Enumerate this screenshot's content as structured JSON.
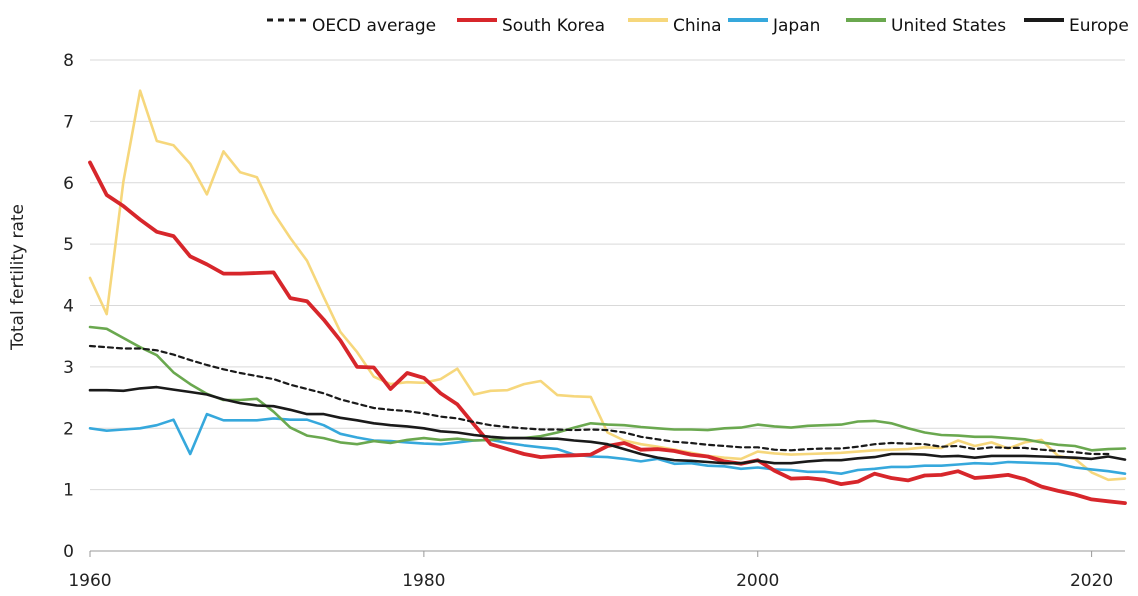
{
  "chart_data": {
    "type": "line",
    "title": "",
    "xlabel": "",
    "ylabel": "Total fertility rate",
    "xlim": [
      1960,
      2022
    ],
    "ylim": [
      0,
      8
    ],
    "x_ticks": [
      "1960",
      "1980",
      "2000",
      "2020"
    ],
    "y_ticks": [
      "0",
      "1",
      "2",
      "3",
      "4",
      "5",
      "6",
      "7",
      "8"
    ],
    "grid": true,
    "legend_position": "top",
    "x": [
      1960,
      1961,
      1962,
      1963,
      1964,
      1965,
      1966,
      1967,
      1968,
      1969,
      1970,
      1971,
      1972,
      1973,
      1974,
      1975,
      1976,
      1977,
      1978,
      1979,
      1980,
      1981,
      1982,
      1983,
      1984,
      1985,
      1986,
      1987,
      1988,
      1989,
      1990,
      1991,
      1992,
      1993,
      1994,
      1995,
      1996,
      1997,
      1998,
      1999,
      2000,
      2001,
      2002,
      2003,
      2004,
      2005,
      2006,
      2007,
      2008,
      2009,
      2010,
      2011,
      2012,
      2013,
      2014,
      2015,
      2016,
      2017,
      2018,
      2019,
      2020,
      2021,
      2022
    ],
    "series": [
      {
        "name": "OECD average",
        "color": "#1a1a1a",
        "dash": true,
        "values": [
          3.34,
          3.32,
          3.3,
          3.3,
          3.27,
          3.2,
          3.11,
          3.03,
          2.96,
          2.9,
          2.85,
          2.8,
          2.71,
          2.64,
          2.57,
          2.47,
          2.4,
          2.33,
          2.3,
          2.28,
          2.24,
          2.19,
          2.16,
          2.1,
          2.05,
          2.02,
          2.0,
          1.98,
          1.98,
          1.97,
          1.98,
          1.97,
          1.93,
          1.86,
          1.82,
          1.78,
          1.76,
          1.73,
          1.71,
          1.69,
          1.69,
          1.65,
          1.64,
          1.66,
          1.67,
          1.67,
          1.7,
          1.74,
          1.76,
          1.75,
          1.74,
          1.7,
          1.71,
          1.66,
          1.69,
          1.68,
          1.68,
          1.65,
          1.63,
          1.61,
          1.58,
          1.58,
          null
        ]
      },
      {
        "name": "South Korea",
        "color": "#d7262b",
        "dash": false,
        "values": [
          6.33,
          5.8,
          5.62,
          5.4,
          5.2,
          5.13,
          4.8,
          4.67,
          4.52,
          4.52,
          4.53,
          4.54,
          4.12,
          4.07,
          3.77,
          3.43,
          3.0,
          2.99,
          2.64,
          2.9,
          2.82,
          2.57,
          2.39,
          2.06,
          1.74,
          1.66,
          1.58,
          1.53,
          1.55,
          1.56,
          1.57,
          1.71,
          1.76,
          1.65,
          1.66,
          1.63,
          1.57,
          1.54,
          1.46,
          1.42,
          1.48,
          1.31,
          1.18,
          1.19,
          1.16,
          1.09,
          1.13,
          1.26,
          1.19,
          1.15,
          1.23,
          1.24,
          1.3,
          1.19,
          1.21,
          1.24,
          1.17,
          1.05,
          0.98,
          0.92,
          0.84,
          0.81,
          0.78
        ]
      },
      {
        "name": "China",
        "color": "#f6d77c",
        "dash": false,
        "values": [
          4.45,
          3.86,
          6.02,
          7.5,
          6.68,
          6.61,
          6.31,
          5.81,
          6.51,
          6.17,
          6.09,
          5.51,
          5.1,
          4.73,
          4.14,
          3.57,
          3.24,
          2.84,
          2.72,
          2.75,
          2.74,
          2.8,
          2.97,
          2.55,
          2.61,
          2.62,
          2.72,
          2.77,
          2.54,
          2.52,
          2.51,
          1.93,
          1.8,
          1.74,
          1.7,
          1.65,
          1.6,
          1.55,
          1.52,
          1.5,
          1.62,
          1.59,
          1.57,
          1.58,
          1.59,
          1.6,
          1.62,
          1.64,
          1.65,
          1.66,
          1.69,
          1.68,
          1.8,
          1.71,
          1.77,
          1.67,
          1.77,
          1.81,
          1.55,
          1.5,
          1.28,
          1.16,
          1.18
        ]
      },
      {
        "name": "Japan",
        "color": "#36a8dc",
        "dash": false,
        "values": [
          2.0,
          1.96,
          1.98,
          2.0,
          2.05,
          2.14,
          1.58,
          2.23,
          2.13,
          2.13,
          2.13,
          2.16,
          2.14,
          2.14,
          2.05,
          1.91,
          1.85,
          1.8,
          1.79,
          1.77,
          1.75,
          1.74,
          1.77,
          1.8,
          1.81,
          1.76,
          1.72,
          1.69,
          1.66,
          1.57,
          1.54,
          1.53,
          1.5,
          1.46,
          1.5,
          1.42,
          1.43,
          1.39,
          1.38,
          1.34,
          1.36,
          1.33,
          1.32,
          1.29,
          1.29,
          1.26,
          1.32,
          1.34,
          1.37,
          1.37,
          1.39,
          1.39,
          1.41,
          1.43,
          1.42,
          1.45,
          1.44,
          1.43,
          1.42,
          1.36,
          1.33,
          1.3,
          1.26
        ]
      },
      {
        "name": "United States",
        "color": "#6aa84f",
        "dash": false,
        "values": [
          3.65,
          3.62,
          3.47,
          3.32,
          3.19,
          2.91,
          2.72,
          2.56,
          2.46,
          2.46,
          2.48,
          2.27,
          2.01,
          1.88,
          1.84,
          1.77,
          1.74,
          1.79,
          1.76,
          1.81,
          1.84,
          1.81,
          1.83,
          1.8,
          1.81,
          1.84,
          1.84,
          1.87,
          1.93,
          2.01,
          2.08,
          2.06,
          2.05,
          2.02,
          2.0,
          1.98,
          1.98,
          1.97,
          2.0,
          2.01,
          2.06,
          2.03,
          2.01,
          2.04,
          2.05,
          2.06,
          2.11,
          2.12,
          2.08,
          2.0,
          1.93,
          1.89,
          1.88,
          1.86,
          1.86,
          1.84,
          1.82,
          1.77,
          1.73,
          1.71,
          1.64,
          1.66,
          1.67
        ]
      },
      {
        "name": "Europe",
        "color": "#1a1a1a",
        "dash": false,
        "values": [
          2.62,
          2.62,
          2.61,
          2.65,
          2.67,
          2.63,
          2.59,
          2.55,
          2.47,
          2.41,
          2.37,
          2.36,
          2.3,
          2.23,
          2.23,
          2.17,
          2.13,
          2.08,
          2.05,
          2.03,
          2.0,
          1.95,
          1.93,
          1.89,
          1.86,
          1.84,
          1.84,
          1.83,
          1.83,
          1.8,
          1.78,
          1.74,
          1.66,
          1.58,
          1.52,
          1.48,
          1.47,
          1.45,
          1.43,
          1.43,
          1.47,
          1.43,
          1.43,
          1.46,
          1.48,
          1.48,
          1.51,
          1.53,
          1.58,
          1.58,
          1.57,
          1.54,
          1.55,
          1.52,
          1.55,
          1.55,
          1.55,
          1.54,
          1.53,
          1.52,
          1.5,
          1.54,
          1.49
        ]
      }
    ]
  }
}
